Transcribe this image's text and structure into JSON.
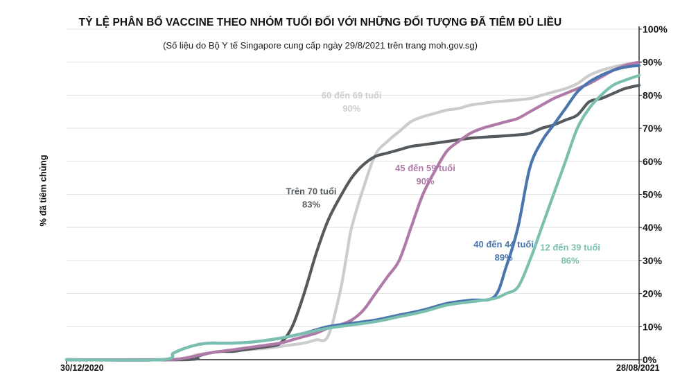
{
  "chart_data": {
    "type": "line",
    "title": "TỶ LỆ PHÂN BỔ VACCINE THEO NHÓM TUỔI ĐỐI VỚI NHỮNG ĐỐI TƯỢNG ĐÃ TIÊM ĐỦ LIỀU",
    "subtitle": "(Số liệu do Bộ Y tế Singapore cung cấp ngày 29/8/2021 trên trang moh.gov.sg)",
    "ylabel": "% đã tiêm chủng",
    "xlabel": "",
    "x_tick_labels": [
      "30/12/2020",
      "28/08/2021"
    ],
    "x_range_days": [
      0,
      241
    ],
    "ylim": [
      0,
      100
    ],
    "y_ticks": [
      0,
      10,
      20,
      30,
      40,
      50,
      60,
      70,
      80,
      90,
      100
    ],
    "y_tick_labels": [
      "0%",
      "10%",
      "20%",
      "30%",
      "40%",
      "50%",
      "60%",
      "70%",
      "80%",
      "90%",
      "100%"
    ],
    "grid": true,
    "series": [
      {
        "name": "60 đến 69 tuổi",
        "label": "60 đến 69 tuổi",
        "final_label": "90%",
        "color": "#cccccc",
        "x": [
          0,
          40,
          50,
          55,
          60,
          65,
          75,
          85,
          90,
          95,
          100,
          105,
          110,
          115,
          118,
          120,
          125,
          130,
          135,
          140,
          145,
          150,
          155,
          160,
          165,
          170,
          175,
          180,
          185,
          190,
          195,
          200,
          205,
          210,
          215,
          220,
          225,
          230,
          235,
          241
        ],
        "values": [
          0,
          0,
          0.5,
          1.5,
          2,
          2.5,
          3,
          3.5,
          4,
          4.5,
          5,
          6,
          7,
          20,
          32,
          40,
          52,
          62,
          66,
          69,
          72,
          73.5,
          74.5,
          75.5,
          76,
          77,
          77.5,
          78,
          78.3,
          78.6,
          79,
          80,
          81,
          82,
          83.5,
          86,
          87.5,
          88.5,
          89.3,
          90
        ]
      },
      {
        "name": "Trên 70 tuổi",
        "label": "Trên 70 tuổi",
        "final_label": "83%",
        "color": "#555a5e",
        "x": [
          0,
          50,
          55,
          60,
          65,
          70,
          75,
          80,
          85,
          90,
          95,
          100,
          105,
          110,
          115,
          120,
          125,
          130,
          135,
          140,
          145,
          150,
          160,
          170,
          180,
          190,
          195,
          200,
          205,
          210,
          215,
          220,
          225,
          230,
          235,
          241
        ],
        "values": [
          0,
          0,
          1,
          2,
          2.5,
          2.5,
          3,
          3.5,
          4,
          5,
          10,
          20,
          32,
          42,
          49,
          55,
          59,
          61.5,
          62.5,
          63.5,
          64.5,
          65,
          66,
          67,
          67.5,
          68,
          68.5,
          70,
          71,
          72.5,
          74,
          78,
          79,
          80.5,
          82,
          83
        ]
      },
      {
        "name": "45 đến 59 tuổi",
        "label": "45 đến 59 tuổi",
        "final_label": "90%",
        "color": "#b07aa8",
        "x": [
          0,
          40,
          50,
          60,
          70,
          80,
          90,
          95,
          100,
          105,
          110,
          115,
          120,
          125,
          130,
          135,
          140,
          145,
          150,
          155,
          160,
          165,
          170,
          175,
          180,
          185,
          190,
          195,
          200,
          205,
          210,
          215,
          220,
          225,
          230,
          235,
          241
        ],
        "values": [
          0,
          0,
          0.5,
          2,
          3,
          4,
          5,
          6,
          7,
          8,
          9.5,
          10.5,
          12,
          15,
          20,
          25,
          30,
          40,
          50,
          57,
          63,
          66,
          68.5,
          70,
          71,
          72,
          73,
          75,
          77,
          79,
          80.5,
          82,
          83.5,
          85.5,
          87.5,
          89,
          90
        ]
      },
      {
        "name": "40 đến 44 tuổi",
        "label": "40 đến 44 tuổi",
        "final_label": "89%",
        "color": "#4a76ad",
        "x": [
          0,
          40,
          45,
          50,
          55,
          60,
          70,
          80,
          90,
          100,
          110,
          120,
          130,
          140,
          150,
          160,
          170,
          180,
          185,
          190,
          195,
          200,
          205,
          210,
          215,
          220,
          225,
          230,
          235,
          241
        ],
        "values": [
          0,
          0,
          2,
          3.5,
          4.5,
          5,
          5,
          5.5,
          6.5,
          8,
          10,
          11,
          12,
          13.5,
          15,
          17,
          18,
          19,
          28,
          40,
          58,
          66,
          71,
          76,
          81,
          84,
          86,
          87.5,
          88.5,
          89
        ]
      },
      {
        "name": "12 đến 39 tuổi",
        "label": "12 đến 39 tuổi",
        "final_label": "86%",
        "color": "#7bbfae",
        "x": [
          0,
          40,
          45,
          50,
          55,
          60,
          70,
          80,
          90,
          100,
          110,
          120,
          130,
          140,
          150,
          160,
          170,
          180,
          185,
          190,
          195,
          200,
          205,
          210,
          215,
          220,
          225,
          230,
          235,
          241
        ],
        "values": [
          0,
          0,
          2,
          3.5,
          4.5,
          5,
          5,
          5.5,
          6.5,
          8,
          9.5,
          10.5,
          11.5,
          13,
          14.5,
          16.5,
          17.5,
          18.5,
          20,
          22,
          30,
          40,
          50,
          60,
          70,
          76,
          80,
          83,
          84.5,
          86
        ]
      }
    ]
  }
}
